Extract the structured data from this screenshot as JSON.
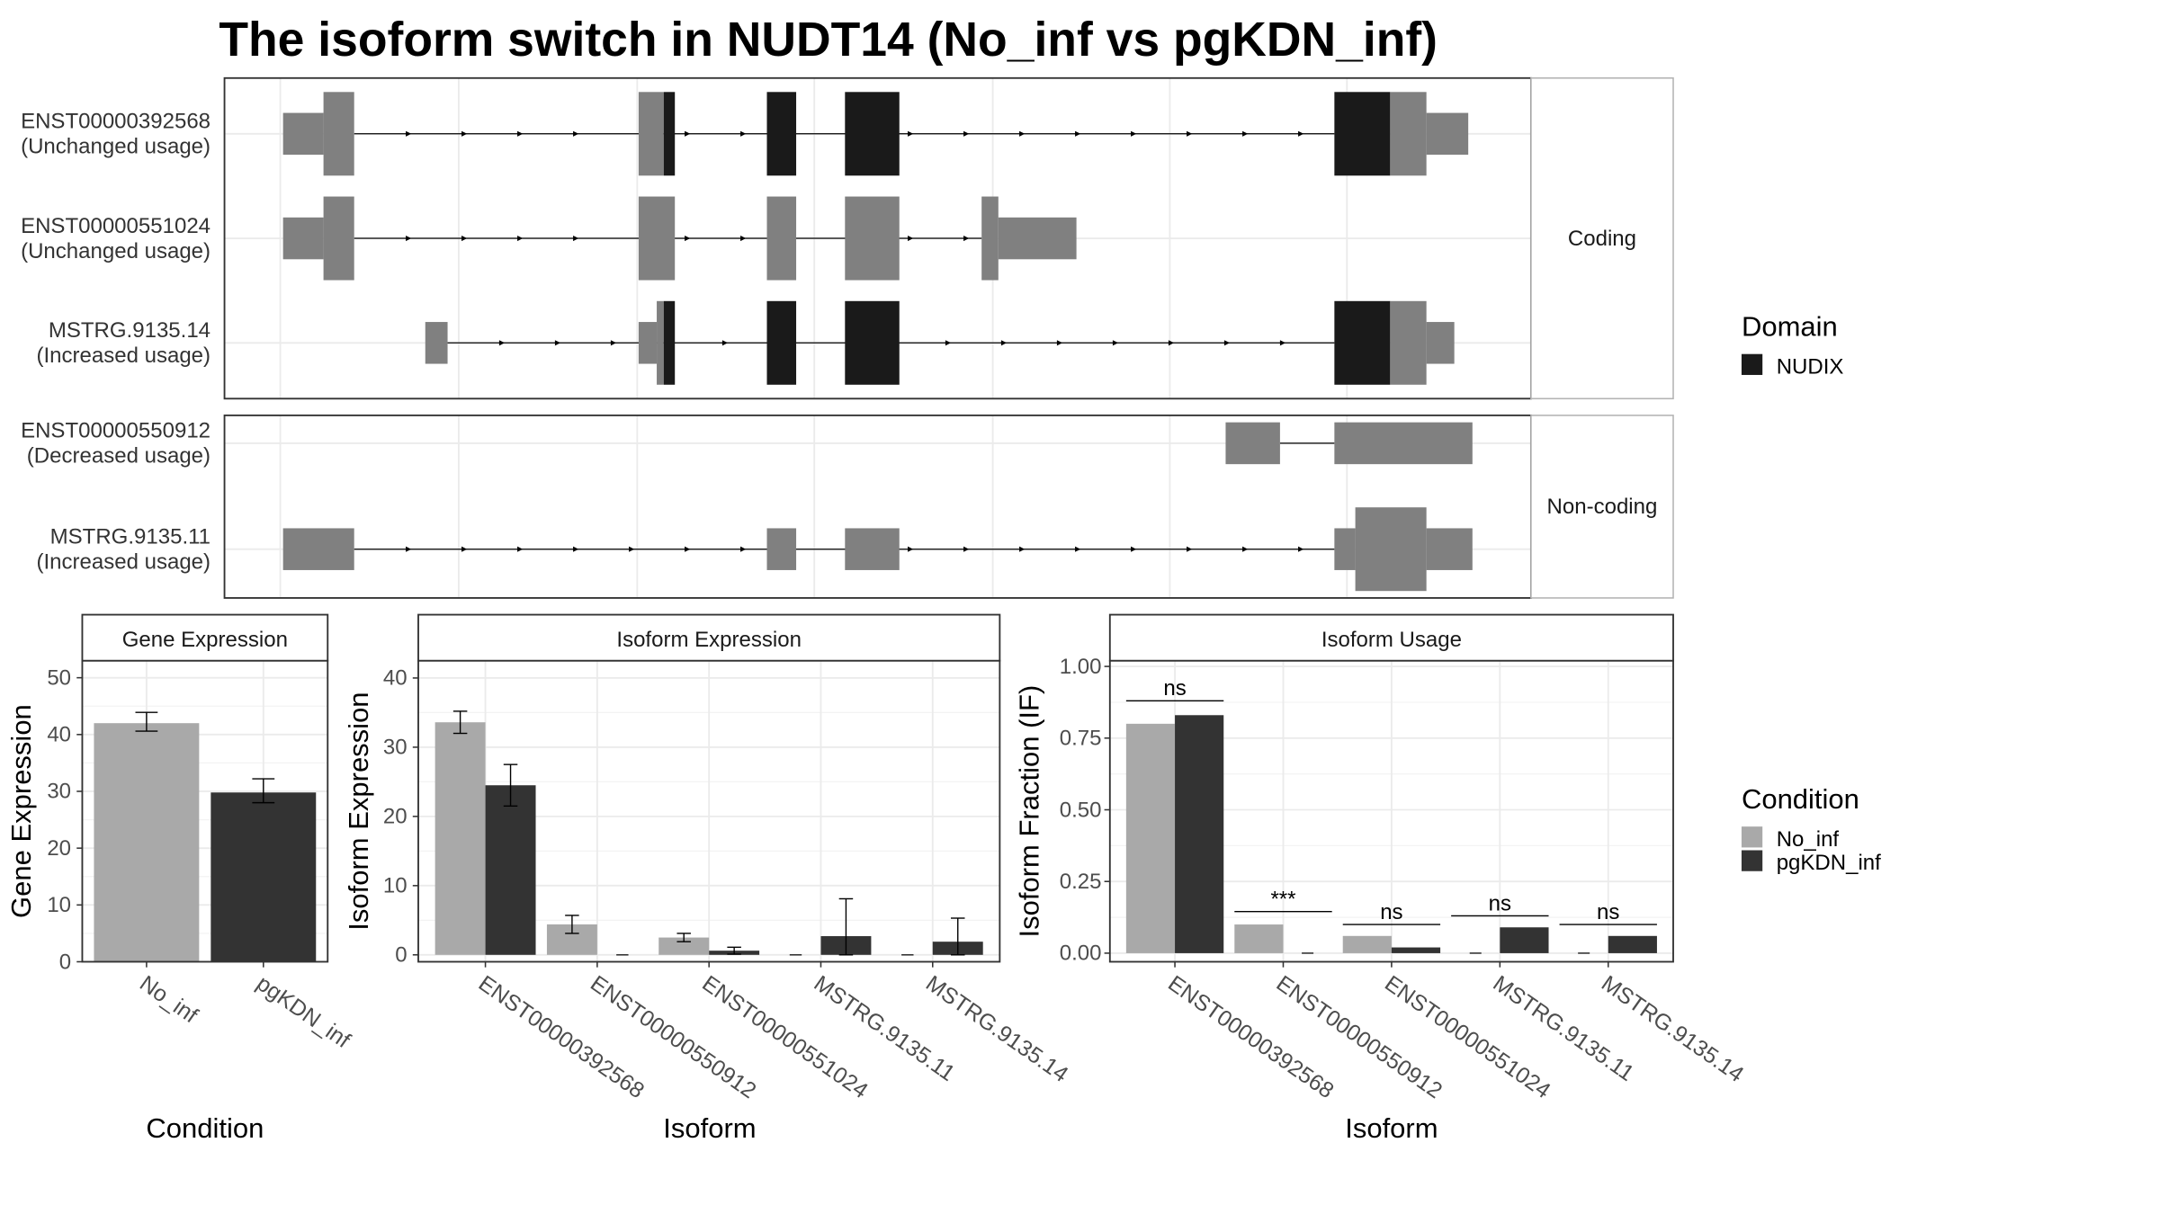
{
  "title": "The isoform switch in NUDT14 (No_inf vs pgKDN_inf)",
  "colors": {
    "exon": "#808080",
    "domain": "#1a1a1a",
    "no_inf": "#a9a9a9",
    "pgkdn_inf": "#333333",
    "grid": "#ebebeb",
    "panel_border": "#333333",
    "strip_border": "#b3b3b3"
  },
  "structure": {
    "groups": [
      {
        "label": "Coding",
        "isoforms": [
          {
            "name": "ENST00000392568",
            "usage": "(Unchanged usage)",
            "intron": [
              254,
              957
            ],
            "blocks": [
              {
                "s": 203,
                "e": 232,
                "h": "utr",
                "c": "exon"
              },
              {
                "s": 232,
                "e": 254,
                "h": "cds",
                "c": "exon"
              },
              {
                "s": 458,
                "e": 476,
                "h": "cds",
                "c": "exon"
              },
              {
                "s": 476,
                "e": 484,
                "h": "cds",
                "c": "domain"
              },
              {
                "s": 550,
                "e": 571,
                "h": "cds",
                "c": "domain"
              },
              {
                "s": 606,
                "e": 645,
                "h": "cds",
                "c": "domain"
              },
              {
                "s": 957,
                "e": 997,
                "h": "cds",
                "c": "domain"
              },
              {
                "s": 997,
                "e": 1023,
                "h": "cds",
                "c": "exon"
              },
              {
                "s": 1023,
                "e": 1053,
                "h": "utr",
                "c": "exon"
              }
            ]
          },
          {
            "name": "ENST00000551024",
            "usage": "(Unchanged usage)",
            "intron": [
              254,
              704
            ],
            "blocks": [
              {
                "s": 203,
                "e": 232,
                "h": "utr",
                "c": "exon"
              },
              {
                "s": 232,
                "e": 254,
                "h": "cds",
                "c": "exon"
              },
              {
                "s": 458,
                "e": 484,
                "h": "cds",
                "c": "exon"
              },
              {
                "s": 550,
                "e": 571,
                "h": "cds",
                "c": "exon"
              },
              {
                "s": 606,
                "e": 645,
                "h": "cds",
                "c": "exon"
              },
              {
                "s": 704,
                "e": 716,
                "h": "cds",
                "c": "exon"
              },
              {
                "s": 716,
                "e": 772,
                "h": "utr",
                "c": "exon"
              }
            ]
          },
          {
            "name": "MSTRG.9135.14",
            "usage": "(Increased usage)",
            "intron": [
              321,
              957
            ],
            "blocks": [
              {
                "s": 305,
                "e": 321,
                "h": "utr",
                "c": "exon"
              },
              {
                "s": 458,
                "e": 471,
                "h": "utr",
                "c": "exon"
              },
              {
                "s": 471,
                "e": 476,
                "h": "cds",
                "c": "exon"
              },
              {
                "s": 476,
                "e": 484,
                "h": "cds",
                "c": "domain"
              },
              {
                "s": 550,
                "e": 571,
                "h": "cds",
                "c": "domain"
              },
              {
                "s": 606,
                "e": 645,
                "h": "cds",
                "c": "domain"
              },
              {
                "s": 957,
                "e": 997,
                "h": "cds",
                "c": "domain"
              },
              {
                "s": 997,
                "e": 1023,
                "h": "cds",
                "c": "exon"
              },
              {
                "s": 1023,
                "e": 1043,
                "h": "utr",
                "c": "exon"
              }
            ]
          }
        ]
      },
      {
        "label": "Non-coding",
        "isoforms": [
          {
            "name": "ENST00000550912",
            "usage": "(Decreased usage)",
            "intron": [
              918,
              957
            ],
            "arrows": false,
            "blocks": [
              {
                "s": 879,
                "e": 918,
                "h": "utr",
                "c": "exon"
              },
              {
                "s": 957,
                "e": 1056,
                "h": "utr",
                "c": "exon"
              }
            ]
          },
          {
            "name": "MSTRG.9135.11",
            "usage": "(Increased usage)",
            "intron": [
              254,
              957
            ],
            "blocks": [
              {
                "s": 203,
                "e": 254,
                "h": "utr",
                "c": "exon"
              },
              {
                "s": 550,
                "e": 571,
                "h": "utr",
                "c": "exon"
              },
              {
                "s": 606,
                "e": 645,
                "h": "utr",
                "c": "exon"
              },
              {
                "s": 957,
                "e": 972,
                "h": "utr",
                "c": "exon"
              },
              {
                "s": 972,
                "e": 1023,
                "h": "cds",
                "c": "exon"
              },
              {
                "s": 1023,
                "e": 1056,
                "h": "utr",
                "c": "exon"
              }
            ]
          }
        ]
      }
    ],
    "domain_legend": {
      "title": "Domain",
      "items": [
        "NUDIX"
      ]
    }
  },
  "chart_data": [
    {
      "type": "bar",
      "title": "Gene Expression",
      "xlabel": "Condition",
      "ylabel": "Gene Expression",
      "categories": [
        "No_inf",
        "pgKDN_inf"
      ],
      "values": [
        42.0,
        29.8
      ],
      "errors": [
        [
          40.6,
          43.9
        ],
        [
          28.0,
          32.2
        ]
      ],
      "ylim": [
        0,
        53
      ],
      "yticks": [
        0,
        10,
        20,
        30,
        40,
        50
      ]
    },
    {
      "type": "bar",
      "title": "Isoform Expression",
      "xlabel": "Isoform",
      "ylabel": "Isoform Expression",
      "categories": [
        "ENST00000392568",
        "ENST00000550912",
        "ENST00000551024",
        "MSTRG.9135.11",
        "MSTRG.9135.14"
      ],
      "series": [
        {
          "name": "No_inf",
          "values": [
            33.6,
            4.4,
            2.5,
            0.0,
            0.0
          ],
          "errors": [
            [
              32.0,
              35.2
            ],
            [
              3.1,
              5.7
            ],
            [
              1.9,
              3.1
            ],
            null,
            null
          ]
        },
        {
          "name": "pgKDN_inf",
          "values": [
            24.5,
            0.0,
            0.6,
            2.7,
            1.9
          ],
          "errors": [
            [
              21.5,
              27.5
            ],
            null,
            [
              0.1,
              1.1
            ],
            [
              0.0,
              8.1
            ],
            [
              0.0,
              5.3
            ]
          ]
        }
      ],
      "ylim": [
        -1,
        42.5
      ],
      "yticks": [
        0,
        10,
        20,
        30,
        40
      ]
    },
    {
      "type": "bar",
      "title": "Isoform Usage",
      "xlabel": "Isoform",
      "ylabel": "Isoform Fraction (IF)",
      "categories": [
        "ENST00000392568",
        "ENST00000550912",
        "ENST00000551024",
        "MSTRG.9135.11",
        "MSTRG.9135.14"
      ],
      "series": [
        {
          "name": "No_inf",
          "values": [
            0.8,
            0.1,
            0.06,
            0.0,
            0.0
          ]
        },
        {
          "name": "pgKDN_inf",
          "values": [
            0.83,
            0.0,
            0.02,
            0.09,
            0.06
          ]
        }
      ],
      "significance": [
        {
          "label": "ns",
          "y": 0.88
        },
        {
          "label": "***",
          "y": 0.145
        },
        {
          "label": "ns",
          "y": 0.1
        },
        {
          "label": "ns",
          "y": 0.13
        },
        {
          "label": "ns",
          "y": 0.1
        }
      ],
      "ylim": [
        -0.03,
        1.02
      ],
      "yticks": [
        0.0,
        0.25,
        0.5,
        0.75,
        1.0
      ],
      "ytick_labels": [
        "0.00",
        "0.25",
        "0.50",
        "0.75",
        "1.00"
      ]
    }
  ],
  "condition_legend": {
    "title": "Condition",
    "items": [
      "No_inf",
      "pgKDN_inf"
    ]
  }
}
